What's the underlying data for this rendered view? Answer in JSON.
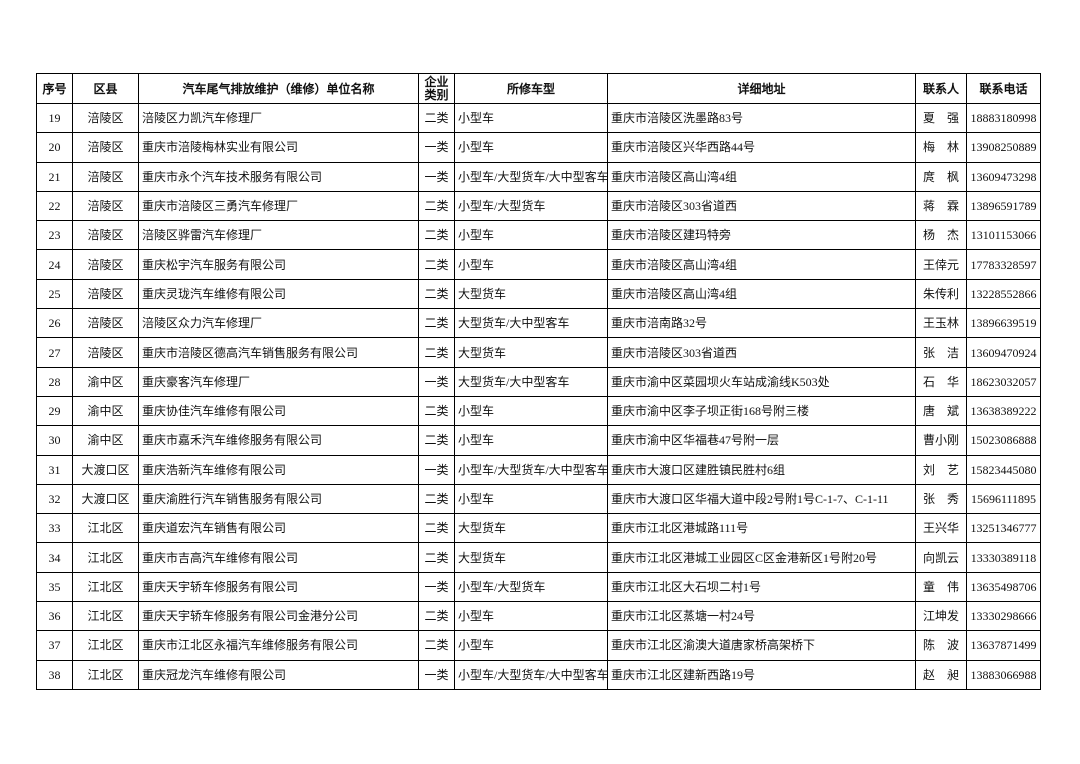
{
  "table": {
    "header": [
      "序号",
      "区县",
      "汽车尾气排放维护（维修）单位名称",
      "企业类别",
      "所修车型",
      "详细地址",
      "联系人",
      "联系电话"
    ],
    "rows": [
      [
        "19",
        "涪陵区",
        "涪陵区力凯汽车修理厂",
        "二类",
        "小型车",
        "重庆市涪陵区洗墨路83号",
        "夏强",
        "18883180998"
      ],
      [
        "20",
        "涪陵区",
        "重庆市涪陵梅林实业有限公司",
        "一类",
        "小型车",
        "重庆市涪陵区兴华西路44号",
        "梅林",
        "13908250889"
      ],
      [
        "21",
        "涪陵区",
        "重庆市永个汽车技术服务有限公司",
        "一类",
        "小型车/大型货车/大中型客车",
        "重庆市涪陵区高山湾4组",
        "庹枫",
        "13609473298"
      ],
      [
        "22",
        "涪陵区",
        "重庆市涪陵区三勇汽车修理厂",
        "二类",
        "小型车/大型货车",
        "重庆市涪陵区303省道西",
        "蒋霖",
        "13896591789"
      ],
      [
        "23",
        "涪陵区",
        "涪陵区骅雷汽车修理厂",
        "二类",
        "小型车",
        "重庆市涪陵区建玛特旁",
        "杨杰",
        "13101153066"
      ],
      [
        "24",
        "涪陵区",
        "重庆松宇汽车服务有限公司",
        "二类",
        "小型车",
        "重庆市涪陵区高山湾4组",
        "王倖元",
        "17783328597"
      ],
      [
        "25",
        "涪陵区",
        "重庆灵珑汽车维修有限公司",
        "二类",
        "大型货车",
        "重庆市涪陵区高山湾4组",
        "朱传利",
        "13228552866"
      ],
      [
        "26",
        "涪陵区",
        "涪陵区众力汽车修理厂",
        "二类",
        "大型货车/大中型客车",
        "重庆市涪南路32号",
        "王玉林",
        "13896639519"
      ],
      [
        "27",
        "涪陵区",
        "重庆市涪陵区德高汽车销售服务有限公司",
        "二类",
        "大型货车",
        "重庆市涪陵区303省道西",
        "张洁",
        "13609470924"
      ],
      [
        "28",
        "渝中区",
        "重庆豪客汽车修理厂",
        "一类",
        "大型货车/大中型客车",
        "重庆市渝中区菜园坝火车站成渝线K503处",
        "石华",
        "18623032057"
      ],
      [
        "29",
        "渝中区",
        "重庆协佳汽车维修有限公司",
        "二类",
        "小型车",
        "重庆市渝中区李子坝正街168号附三楼",
        "唐斌",
        "13638389222"
      ],
      [
        "30",
        "渝中区",
        "重庆市嘉禾汽车维修服务有限公司",
        "二类",
        "小型车",
        "重庆市渝中区华福巷47号附一层",
        "曹小刚",
        "15023086888"
      ],
      [
        "31",
        "大渡口区",
        "重庆浩新汽车维修有限公司",
        "一类",
        "小型车/大型货车/大中型客车",
        "重庆市大渡口区建胜镇民胜村6组",
        "刘艺",
        "15823445080"
      ],
      [
        "32",
        "大渡口区",
        "重庆渝胜行汽车销售服务有限公司",
        "二类",
        "小型车",
        "重庆市大渡口区华福大道中段2号附1号C-1-7、C-1-11",
        "张秀",
        "15696111895"
      ],
      [
        "33",
        "江北区",
        "重庆道宏汽车销售有限公司",
        "二类",
        "大型货车",
        "重庆市江北区港城路111号",
        "王兴华",
        "13251346777"
      ],
      [
        "34",
        "江北区",
        "重庆市吉高汽车维修有限公司",
        "二类",
        "大型货车",
        "重庆市江北区港城工业园区C区金港新区1号附20号",
        "向凯云",
        "13330389118"
      ],
      [
        "35",
        "江北区",
        "重庆天宇轿车修服务有限公司",
        "一类",
        "小型车/大型货车",
        "重庆市江北区大石坝二村1号",
        "童伟",
        "13635498706"
      ],
      [
        "36",
        "江北区",
        "重庆天宇轿车修服务有限公司金港分公司",
        "二类",
        "小型车",
        "重庆市江北区蒸塘一村24号",
        "江坤发",
        "13330298666"
      ],
      [
        "37",
        "江北区",
        "重庆市江北区永福汽车维修服务有限公司",
        "二类",
        "小型车",
        "重庆市江北区渝澳大道唐家桥高架桥下",
        "陈波",
        "13637871499"
      ],
      [
        "38",
        "江北区",
        "重庆冠龙汽车维修有限公司",
        "一类",
        "小型车/大型货车/大中型客车",
        "重庆市江北区建新西路19号",
        "赵昶",
        "13883066988"
      ]
    ]
  }
}
